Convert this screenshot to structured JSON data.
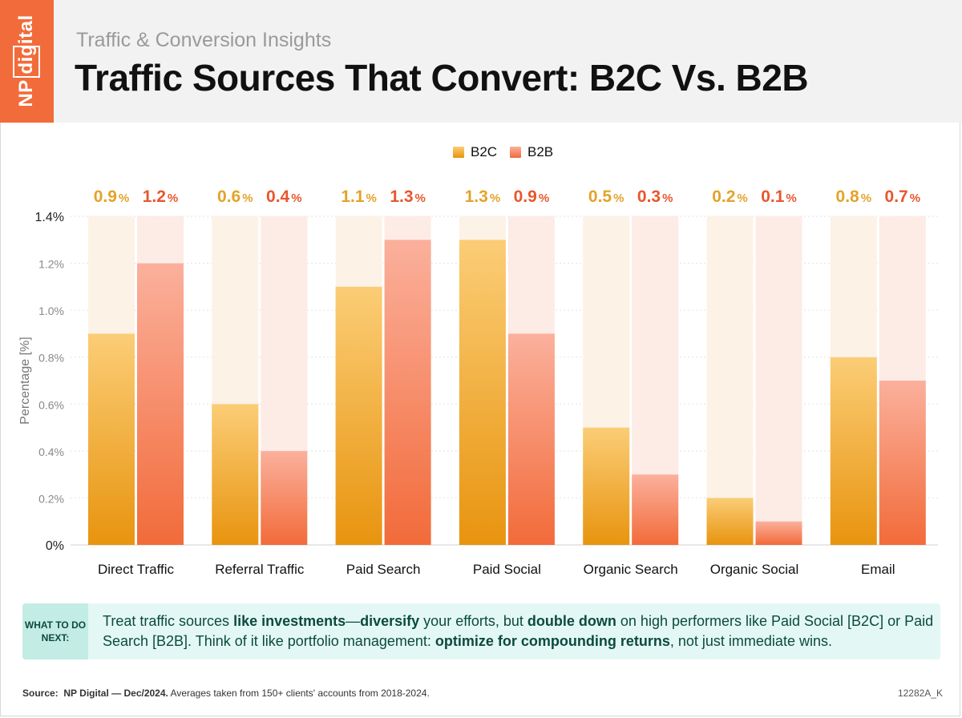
{
  "header": {
    "logo_text": "NP digital",
    "kicker": "Traffic & Conversion Insights",
    "title": "Traffic Sources That Convert: B2C Vs. B2B"
  },
  "colors": {
    "b2c_top": "#fbcd76",
    "b2c_bottom": "#e8940f",
    "b2c_label": "#e3a329",
    "b2c_track": "#fdf2e6",
    "b2b_top": "#fbb09c",
    "b2b_bottom": "#f26b3a",
    "b2b_label": "#e9562d",
    "b2b_track": "#fdebe6",
    "logo": "#f26b3a",
    "tip_bg": "#e3f8f4",
    "tip_text": "#0c4a3e"
  },
  "chart_data": {
    "type": "bar",
    "ylabel": "Percentage [%]",
    "ylim": [
      0,
      1.4
    ],
    "yticks": [
      "0%",
      "0.2%",
      "0.4%",
      "0.6%",
      "0.8%",
      "1.0%",
      "1.2%",
      "1.4%"
    ],
    "ytick_values": [
      0,
      0.2,
      0.4,
      0.6,
      0.8,
      1.0,
      1.2,
      1.4
    ],
    "legend_position": "top-center",
    "categories": [
      "Direct Traffic",
      "Referral Traffic",
      "Paid Search",
      "Paid Social",
      "Organic Search",
      "Organic Social",
      "Email"
    ],
    "series": [
      {
        "name": "B2C",
        "values": [
          0.9,
          0.6,
          1.1,
          1.3,
          0.5,
          0.2,
          0.8
        ],
        "labels": [
          "0.9",
          "0.6",
          "1.1",
          "1.3",
          "0.5",
          "0.2",
          "0.8"
        ]
      },
      {
        "name": "B2B",
        "values": [
          1.2,
          0.4,
          1.3,
          0.9,
          0.3,
          0.1,
          0.7
        ],
        "labels": [
          "1.2",
          "0.4",
          "1.3",
          "0.9",
          "0.3",
          "0.1",
          "0.7"
        ]
      }
    ],
    "label_suffix": "%"
  },
  "tip": {
    "tag": "WHAT TO DO NEXT:",
    "t1": "Treat traffic sources ",
    "b1": "like investments",
    "t2": "—",
    "b2": "diversify",
    "t3": " your efforts, but ",
    "b3": "double down",
    "t4": " on high performers like Paid Social [B2C] or Paid Search [B2B]. Think of it like portfolio management: ",
    "b4": "optimize for compounding returns",
    "t5": ", not just immediate wins."
  },
  "footer": {
    "source_label": "Source:",
    "source_bold": "NP Digital — Dec/2024.",
    "source_rest": "Averages taken from 150+ clients' accounts from 2018-2024.",
    "code": "12282A_K"
  }
}
